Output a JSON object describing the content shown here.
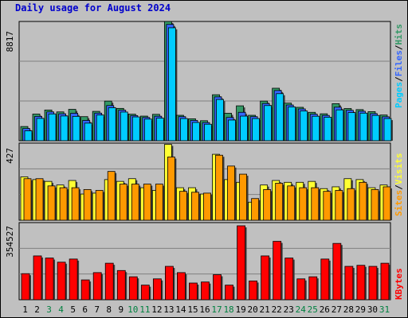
{
  "title": "Daily usage for August 2024",
  "colors": {
    "hits": "#339966",
    "files": "#3366ff",
    "pages": "#00ccff",
    "visits": "#ffff33",
    "sites": "#ff9900",
    "kbytes": "#ff0000",
    "weekend": "#008040",
    "weekday": "#000000",
    "panel_bg": "#c0c0c0",
    "frame_bg": "#c0c0c0",
    "grid": "#808080"
  },
  "chart_data": [
    {
      "type": "bar",
      "panel": "top",
      "ylabel_max": "8817",
      "ylim": [
        0,
        8817
      ],
      "legend": [
        "Pages",
        "Files",
        "Hits"
      ],
      "legend_separator": "/",
      "categories": [
        "1",
        "2",
        "3",
        "4",
        "5",
        "6",
        "7",
        "8",
        "9",
        "10",
        "11",
        "12",
        "13",
        "14",
        "15",
        "16",
        "17",
        "18",
        "19",
        "20",
        "21",
        "22",
        "23",
        "24",
        "25",
        "26",
        "27",
        "28",
        "29",
        "30",
        "31"
      ],
      "series": [
        {
          "name": "Hits",
          "values": [
            1050,
            1970,
            2270,
            2130,
            2320,
            1780,
            2170,
            2930,
            2390,
            1960,
            1820,
            1950,
            8817,
            1880,
            1620,
            1480,
            3400,
            2030,
            2580,
            1880,
            2930,
            3880,
            2780,
            2470,
            2100,
            1990,
            2740,
            2380,
            2300,
            2150,
            1900
          ]
        },
        {
          "name": "Files",
          "values": [
            900,
            1800,
            2130,
            1990,
            2030,
            1500,
            2040,
            2600,
            2260,
            1860,
            1720,
            1810,
            8600,
            1780,
            1500,
            1340,
            3240,
            1720,
            2100,
            1780,
            2750,
            3710,
            2640,
            2350,
            1960,
            1870,
            2480,
            2250,
            2180,
            2000,
            1770
          ]
        },
        {
          "name": "Pages",
          "values": [
            730,
            1650,
            1980,
            1830,
            1800,
            1300,
            1900,
            2440,
            2120,
            1760,
            1600,
            1670,
            8350,
            1640,
            1350,
            1220,
            3050,
            1530,
            1820,
            1640,
            2600,
            3480,
            2500,
            2200,
            1810,
            1740,
            2280,
            2080,
            2040,
            1870,
            1640
          ]
        }
      ]
    },
    {
      "type": "bar",
      "panel": "middle",
      "ylabel_max": "427",
      "ylim": [
        0,
        427
      ],
      "legend": [
        "Sites",
        "Visits"
      ],
      "legend_separator": "/",
      "categories": [
        "1",
        "2",
        "3",
        "4",
        "5",
        "6",
        "7",
        "8",
        "9",
        "10",
        "11",
        "12",
        "13",
        "14",
        "15",
        "16",
        "17",
        "18",
        "19",
        "20",
        "21",
        "22",
        "23",
        "24",
        "25",
        "26",
        "27",
        "28",
        "29",
        "30",
        "31"
      ],
      "series": [
        {
          "name": "Visits",
          "values": [
            240,
            225,
            215,
            195,
            220,
            145,
            150,
            225,
            215,
            230,
            180,
            165,
            420,
            180,
            180,
            145,
            365,
            225,
            210,
            100,
            195,
            220,
            210,
            210,
            215,
            175,
            185,
            230,
            225,
            180,
            195
          ]
        },
        {
          "name": "Sites",
          "values": [
            230,
            230,
            190,
            180,
            180,
            170,
            165,
            270,
            200,
            200,
            200,
            200,
            350,
            160,
            155,
            150,
            360,
            300,
            255,
            120,
            170,
            205,
            190,
            180,
            180,
            160,
            165,
            175,
            210,
            170,
            185
          ]
        }
      ]
    },
    {
      "type": "bar",
      "panel": "bottom",
      "ylabel_max": "354527",
      "ylim": [
        0,
        354527
      ],
      "legend": [
        "KBytes"
      ],
      "categories": [
        "1",
        "2",
        "3",
        "4",
        "5",
        "6",
        "7",
        "8",
        "9",
        "10",
        "11",
        "12",
        "13",
        "14",
        "15",
        "16",
        "17",
        "18",
        "19",
        "20",
        "21",
        "22",
        "23",
        "24",
        "25",
        "26",
        "27",
        "28",
        "29",
        "30",
        "31"
      ],
      "series": [
        {
          "name": "KBytes",
          "values": [
            125000,
            210000,
            200000,
            180000,
            195000,
            95000,
            130000,
            175000,
            140000,
            110000,
            70000,
            100000,
            160000,
            130000,
            80000,
            85000,
            120000,
            70000,
            354527,
            90000,
            210000,
            280000,
            200000,
            100000,
            110000,
            195000,
            270000,
            160000,
            165000,
            160000,
            175000
          ]
        }
      ]
    }
  ],
  "x_labels": [
    {
      "label": "1",
      "weekend": false
    },
    {
      "label": "2",
      "weekend": false
    },
    {
      "label": "3",
      "weekend": true
    },
    {
      "label": "4",
      "weekend": true
    },
    {
      "label": "5",
      "weekend": false
    },
    {
      "label": "6",
      "weekend": false
    },
    {
      "label": "7",
      "weekend": false
    },
    {
      "label": "8",
      "weekend": false
    },
    {
      "label": "9",
      "weekend": false
    },
    {
      "label": "10",
      "weekend": true
    },
    {
      "label": "11",
      "weekend": true
    },
    {
      "label": "12",
      "weekend": false
    },
    {
      "label": "13",
      "weekend": false
    },
    {
      "label": "14",
      "weekend": false
    },
    {
      "label": "15",
      "weekend": false
    },
    {
      "label": "16",
      "weekend": false
    },
    {
      "label": "17",
      "weekend": true
    },
    {
      "label": "18",
      "weekend": true
    },
    {
      "label": "19",
      "weekend": false
    },
    {
      "label": "20",
      "weekend": false
    },
    {
      "label": "21",
      "weekend": false
    },
    {
      "label": "22",
      "weekend": false
    },
    {
      "label": "23",
      "weekend": false
    },
    {
      "label": "24",
      "weekend": true
    },
    {
      "label": "25",
      "weekend": true
    },
    {
      "label": "26",
      "weekend": false
    },
    {
      "label": "27",
      "weekend": false
    },
    {
      "label": "28",
      "weekend": false
    },
    {
      "label": "29",
      "weekend": false
    },
    {
      "label": "30",
      "weekend": false
    },
    {
      "label": "31",
      "weekend": true
    }
  ]
}
